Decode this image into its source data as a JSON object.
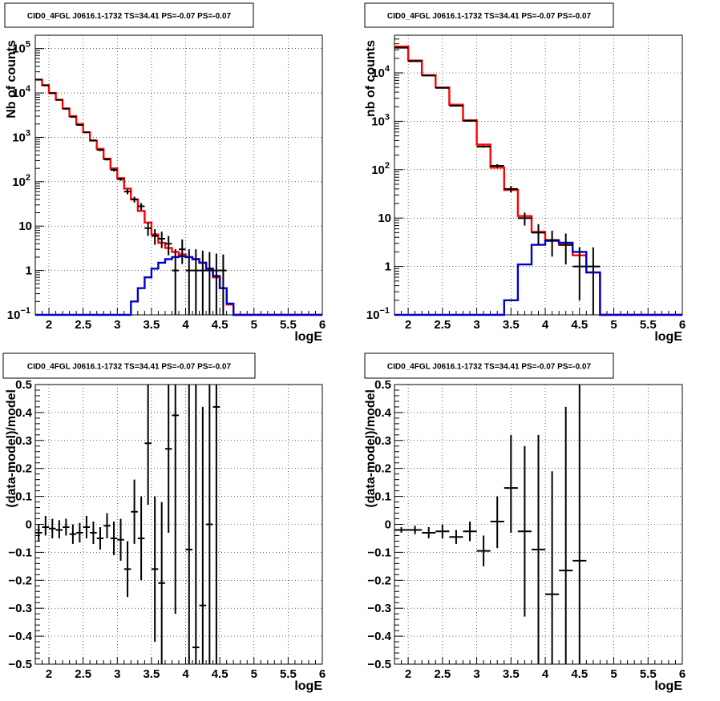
{
  "chart_data": [
    {
      "type": "line",
      "title": "CID0_4FGL J0616.1-1732 TS=34.41 PS=-0.07 PS=-0.07",
      "xlabel": "logE",
      "ylabel": "Nb of counts",
      "yscale": "log",
      "xlim": [
        1.8,
        6.0
      ],
      "ylim": [
        0.1,
        200000
      ],
      "grid": true,
      "x_ticks": [
        2,
        2.5,
        3,
        3.5,
        4,
        4.5,
        5,
        5.5,
        6
      ],
      "x_tick_labels": [
        "2",
        "2.5",
        "3",
        "3.5",
        "4",
        "4.5",
        "5",
        "5.5",
        "6"
      ],
      "y_ticks": [
        0.1,
        1,
        10,
        100,
        1000,
        10000,
        100000
      ],
      "y_tick_labels": [
        [
          "10",
          "−1"
        ],
        [
          "1",
          ""
        ],
        [
          "10",
          ""
        ],
        [
          "10",
          "2"
        ],
        [
          "10",
          "3"
        ],
        [
          "10",
          "4"
        ],
        [
          "10",
          "5"
        ]
      ],
      "series": [
        {
          "color": "#ff0000",
          "kind": "step",
          "edges": [
            1.8,
            1.9,
            2.0,
            2.1,
            2.2,
            2.3,
            2.4,
            2.5,
            2.6,
            2.7,
            2.8,
            2.9,
            3.0,
            3.1,
            3.2,
            3.3,
            3.4,
            3.5,
            3.6,
            3.7,
            3.8,
            3.9,
            4.0,
            4.1,
            4.2,
            4.3,
            4.4,
            4.5,
            4.6,
            4.7,
            4.8,
            6.0
          ],
          "values": [
            20000,
            15000,
            10000,
            7000,
            4500,
            3000,
            2000,
            1300,
            850,
            550,
            330,
            200,
            120,
            70,
            40,
            22,
            12,
            6.5,
            4.2,
            3.2,
            2.6,
            2.3,
            2.0,
            1.8,
            1.5,
            1.1,
            0.7,
            0.4,
            0.17,
            0.1,
            0.1
          ]
        },
        {
          "color": "#0000cc",
          "kind": "step",
          "edges": [
            1.8,
            3.2,
            3.3,
            3.4,
            3.5,
            3.6,
            3.7,
            3.8,
            3.9,
            4.0,
            4.1,
            4.2,
            4.3,
            4.4,
            4.5,
            4.6,
            4.7,
            6.0
          ],
          "values": [
            0.1,
            0.2,
            0.4,
            0.7,
            1.1,
            1.5,
            1.8,
            2.0,
            2.1,
            2.0,
            1.8,
            1.5,
            1.1,
            0.75,
            0.4,
            0.18,
            0.1
          ]
        }
      ],
      "points": [
        {
          "x": 1.85,
          "y": 20000,
          "xerr": 0.05,
          "ylo": 19500,
          "yhi": 20500
        },
        {
          "x": 1.95,
          "y": 14800,
          "xerr": 0.05,
          "ylo": 14400,
          "yhi": 15200
        },
        {
          "x": 2.05,
          "y": 9900,
          "xerr": 0.05,
          "ylo": 9600,
          "yhi": 10200
        },
        {
          "x": 2.15,
          "y": 7000,
          "xerr": 0.05,
          "ylo": 6800,
          "yhi": 7200
        },
        {
          "x": 2.25,
          "y": 4400,
          "xerr": 0.05,
          "ylo": 4250,
          "yhi": 4550
        },
        {
          "x": 2.35,
          "y": 2900,
          "xerr": 0.05,
          "ylo": 2800,
          "yhi": 3000
        },
        {
          "x": 2.45,
          "y": 1900,
          "xerr": 0.05,
          "ylo": 1820,
          "yhi": 1980
        },
        {
          "x": 2.55,
          "y": 1300,
          "xerr": 0.05,
          "ylo": 1240,
          "yhi": 1360
        },
        {
          "x": 2.65,
          "y": 850,
          "xerr": 0.05,
          "ylo": 810,
          "yhi": 890
        },
        {
          "x": 2.75,
          "y": 520,
          "xerr": 0.05,
          "ylo": 490,
          "yhi": 550
        },
        {
          "x": 2.85,
          "y": 320,
          "xerr": 0.05,
          "ylo": 300,
          "yhi": 340
        },
        {
          "x": 2.95,
          "y": 185,
          "xerr": 0.05,
          "ylo": 170,
          "yhi": 200
        },
        {
          "x": 3.05,
          "y": 115,
          "xerr": 0.05,
          "ylo": 105,
          "yhi": 125
        },
        {
          "x": 3.15,
          "y": 60,
          "xerr": 0.05,
          "ylo": 52,
          "yhi": 68
        },
        {
          "x": 3.25,
          "y": 40,
          "xerr": 0.05,
          "ylo": 34,
          "yhi": 46
        },
        {
          "x": 3.35,
          "y": 28,
          "xerr": 0.05,
          "ylo": 23,
          "yhi": 33
        },
        {
          "x": 3.45,
          "y": 9,
          "xerr": 0.05,
          "ylo": 6,
          "yhi": 12
        },
        {
          "x": 3.55,
          "y": 6,
          "xerr": 0.05,
          "ylo": 3.8,
          "yhi": 8.5
        },
        {
          "x": 3.65,
          "y": 5.2,
          "xerr": 0.05,
          "ylo": 3.2,
          "yhi": 7.5
        },
        {
          "x": 3.75,
          "y": 4,
          "xerr": 0.05,
          "ylo": 2.2,
          "yhi": 6
        },
        {
          "x": 3.85,
          "y": 1,
          "xerr": 0.05,
          "ylo": 0.1,
          "yhi": 3
        },
        {
          "x": 3.95,
          "y": 3,
          "xerr": 0.05,
          "ylo": 1.4,
          "yhi": 5
        },
        {
          "x": 4.05,
          "y": 1,
          "xerr": 0.05,
          "ylo": 0.1,
          "yhi": 3
        },
        {
          "x": 4.15,
          "y": 1,
          "xerr": 0.05,
          "ylo": 0.1,
          "yhi": 3
        },
        {
          "x": 4.25,
          "y": 1,
          "xerr": 0.05,
          "ylo": 0.1,
          "yhi": 2.8
        },
        {
          "x": 4.35,
          "y": 1,
          "xerr": 0.05,
          "ylo": 0.1,
          "yhi": 2.6
        },
        {
          "x": 4.45,
          "y": 1,
          "xerr": 0.05,
          "ylo": 0.1,
          "yhi": 2.4
        },
        {
          "x": 4.55,
          "y": 1,
          "xerr": 0.05,
          "ylo": 0.1,
          "yhi": 2.3
        }
      ]
    },
    {
      "type": "line",
      "title": "CID0_4FGL J0616.1-1732 TS=34.41 PS=-0.07 PS=-0.07",
      "xlabel": "logE",
      "ylabel": "nb of counts",
      "yscale": "log",
      "xlim": [
        1.8,
        6.0
      ],
      "ylim": [
        0.1,
        60000
      ],
      "grid": true,
      "x_ticks": [
        2,
        2.5,
        3,
        3.5,
        4,
        4.5,
        5,
        5.5,
        6
      ],
      "x_tick_labels": [
        "2",
        "2.5",
        "3",
        "3.5",
        "4",
        "4.5",
        "5",
        "5.5",
        "6"
      ],
      "y_ticks": [
        0.1,
        1,
        10,
        100,
        1000,
        10000
      ],
      "y_tick_labels": [
        [
          "10",
          "−1"
        ],
        [
          "1",
          ""
        ],
        [
          "10",
          ""
        ],
        [
          "10",
          "2"
        ],
        [
          "10",
          "3"
        ],
        [
          "10",
          "4"
        ]
      ],
      "series": [
        {
          "color": "#ff0000",
          "kind": "step",
          "edges": [
            1.8,
            2.0,
            2.2,
            2.4,
            2.6,
            2.8,
            3.0,
            3.2,
            3.4,
            3.6,
            3.8,
            4.0,
            4.2,
            4.4,
            4.6,
            4.8,
            6.0
          ],
          "values": [
            35000,
            18000,
            9000,
            5000,
            2200,
            1050,
            330,
            110,
            38,
            11,
            5.2,
            3.5,
            2.8,
            1.7,
            0.75,
            0.1
          ]
        },
        {
          "color": "#0000cc",
          "kind": "step",
          "edges": [
            1.8,
            3.2,
            3.4,
            3.6,
            3.8,
            4.0,
            4.2,
            4.4,
            4.6,
            4.8,
            6.0
          ],
          "values": [
            0.1,
            0.1,
            0.2,
            1.1,
            2.8,
            3.4,
            3.1,
            2.0,
            0.75,
            0.1
          ]
        }
      ],
      "points": [
        {
          "x": 1.9,
          "y": 33000,
          "xerr": 0.1,
          "ylo": 32500,
          "yhi": 33500
        },
        {
          "x": 2.1,
          "y": 17500,
          "xerr": 0.1,
          "ylo": 17200,
          "yhi": 17800
        },
        {
          "x": 2.3,
          "y": 8800,
          "xerr": 0.1,
          "ylo": 8600,
          "yhi": 9000
        },
        {
          "x": 2.5,
          "y": 4900,
          "xerr": 0.1,
          "ylo": 4750,
          "yhi": 5050
        },
        {
          "x": 2.7,
          "y": 2100,
          "xerr": 0.1,
          "ylo": 2030,
          "yhi": 2170
        },
        {
          "x": 2.9,
          "y": 1020,
          "xerr": 0.1,
          "ylo": 980,
          "yhi": 1060
        },
        {
          "x": 3.1,
          "y": 300,
          "xerr": 0.1,
          "ylo": 283,
          "yhi": 317
        },
        {
          "x": 3.3,
          "y": 120,
          "xerr": 0.1,
          "ylo": 110,
          "yhi": 130
        },
        {
          "x": 3.5,
          "y": 40,
          "xerr": 0.1,
          "ylo": 34,
          "yhi": 46
        },
        {
          "x": 3.7,
          "y": 10,
          "xerr": 0.1,
          "ylo": 7,
          "yhi": 13
        },
        {
          "x": 3.9,
          "y": 5,
          "xerr": 0.1,
          "ylo": 2.8,
          "yhi": 7.5
        },
        {
          "x": 4.1,
          "y": 3.5,
          "xerr": 0.1,
          "ylo": 1.6,
          "yhi": 5.5
        },
        {
          "x": 4.3,
          "y": 2.8,
          "xerr": 0.1,
          "ylo": 1.1,
          "yhi": 4.8
        },
        {
          "x": 4.5,
          "y": 1.0,
          "xerr": 0.1,
          "ylo": 0.2,
          "yhi": 2.5
        },
        {
          "x": 4.7,
          "y": 1.0,
          "xerr": 0.1,
          "ylo": 0.1,
          "yhi": 2.5
        }
      ]
    },
    {
      "type": "scatter",
      "title": "CID0_4FGL J0616.1-1732 TS=34.41 PS=-0.07 PS=-0.07",
      "xlabel": "logE",
      "ylabel": "(data-model)/model",
      "yscale": "linear",
      "xlim": [
        1.8,
        6.0
      ],
      "ylim": [
        -0.5,
        0.5
      ],
      "grid": true,
      "x_ticks": [
        2,
        2.5,
        3,
        3.5,
        4,
        4.5,
        5,
        5.5,
        6
      ],
      "x_tick_labels": [
        "2",
        "2.5",
        "3",
        "3.5",
        "4",
        "4.5",
        "5",
        "5.5",
        "6"
      ],
      "y_ticks": [
        -0.5,
        -0.4,
        -0.3,
        -0.2,
        -0.1,
        0,
        0.1,
        0.2,
        0.3,
        0.4,
        0.5
      ],
      "y_tick_labels": [
        [
          "−0.5",
          ""
        ],
        [
          "−0.4",
          ""
        ],
        [
          "−0.3",
          ""
        ],
        [
          "−0.2",
          ""
        ],
        [
          "−0.1",
          ""
        ],
        [
          "0",
          ""
        ],
        [
          "0.1",
          ""
        ],
        [
          "0.2",
          ""
        ],
        [
          "0.3",
          ""
        ],
        [
          "0.4",
          ""
        ],
        [
          "0.5",
          ""
        ]
      ],
      "series": [],
      "points": [
        {
          "x": 1.85,
          "y": -0.03,
          "xerr": 0.05,
          "ylo": -0.06,
          "yhi": 0.0
        },
        {
          "x": 1.95,
          "y": -0.01,
          "xerr": 0.05,
          "ylo": -0.04,
          "yhi": 0.03
        },
        {
          "x": 2.05,
          "y": -0.015,
          "xerr": 0.05,
          "ylo": -0.05,
          "yhi": 0.02
        },
        {
          "x": 2.15,
          "y": -0.02,
          "xerr": 0.05,
          "ylo": -0.05,
          "yhi": 0.015
        },
        {
          "x": 2.25,
          "y": -0.01,
          "xerr": 0.05,
          "ylo": -0.04,
          "yhi": 0.02
        },
        {
          "x": 2.35,
          "y": -0.035,
          "xerr": 0.05,
          "ylo": -0.07,
          "yhi": 0.0
        },
        {
          "x": 2.45,
          "y": -0.03,
          "xerr": 0.05,
          "ylo": -0.065,
          "yhi": 0.005
        },
        {
          "x": 2.55,
          "y": -0.01,
          "xerr": 0.05,
          "ylo": -0.05,
          "yhi": 0.03
        },
        {
          "x": 2.65,
          "y": -0.03,
          "xerr": 0.05,
          "ylo": -0.07,
          "yhi": 0.01
        },
        {
          "x": 2.75,
          "y": -0.05,
          "xerr": 0.05,
          "ylo": -0.09,
          "yhi": -0.01
        },
        {
          "x": 2.85,
          "y": -0.005,
          "xerr": 0.05,
          "ylo": -0.05,
          "yhi": 0.04
        },
        {
          "x": 2.95,
          "y": -0.05,
          "xerr": 0.05,
          "ylo": -0.11,
          "yhi": 0.01
        },
        {
          "x": 3.05,
          "y": -0.055,
          "xerr": 0.05,
          "ylo": -0.13,
          "yhi": 0.02
        },
        {
          "x": 3.15,
          "y": -0.16,
          "xerr": 0.05,
          "ylo": -0.26,
          "yhi": -0.06
        },
        {
          "x": 3.25,
          "y": 0.045,
          "xerr": 0.05,
          "ylo": -0.07,
          "yhi": 0.16
        },
        {
          "x": 3.35,
          "y": -0.05,
          "xerr": 0.05,
          "ylo": -0.2,
          "yhi": 0.1
        },
        {
          "x": 3.45,
          "y": 0.29,
          "xerr": 0.05,
          "ylo": 0.07,
          "yhi": 0.5
        },
        {
          "x": 3.55,
          "y": -0.16,
          "xerr": 0.05,
          "ylo": -0.42,
          "yhi": 0.1
        },
        {
          "x": 3.65,
          "y": -0.21,
          "xerr": 0.05,
          "ylo": -0.5,
          "yhi": 0.08
        },
        {
          "x": 3.75,
          "y": 0.27,
          "xerr": 0.05,
          "ylo": -0.03,
          "yhi": 0.5
        },
        {
          "x": 3.85,
          "y": 0.39,
          "xerr": 0.05,
          "ylo": -0.32,
          "yhi": 0.5
        },
        {
          "x": 4.05,
          "y": -0.09,
          "xerr": 0.05,
          "ylo": -0.5,
          "yhi": 0.5
        },
        {
          "x": 4.15,
          "y": -0.44,
          "xerr": 0.05,
          "ylo": -0.5,
          "yhi": 0.5
        },
        {
          "x": 4.25,
          "y": -0.29,
          "xerr": 0.05,
          "ylo": -0.5,
          "yhi": 0.42
        },
        {
          "x": 4.35,
          "y": 0.0,
          "xerr": 0.05,
          "ylo": -0.5,
          "yhi": 0.5
        },
        {
          "x": 4.45,
          "y": 0.42,
          "xerr": 0.05,
          "ylo": -0.5,
          "yhi": 0.5
        }
      ]
    },
    {
      "type": "scatter",
      "title": "CID0_4FGL J0616.1-1732 TS=34.41 PS=-0.07 PS=-0.07",
      "xlabel": "logE",
      "ylabel": "(data-model)/model",
      "yscale": "linear",
      "xlim": [
        1.8,
        6.0
      ],
      "ylim": [
        -0.5,
        0.5
      ],
      "grid": true,
      "x_ticks": [
        2,
        2.5,
        3,
        3.5,
        4,
        4.5,
        5,
        5.5,
        6
      ],
      "x_tick_labels": [
        "2",
        "2.5",
        "3",
        "3.5",
        "4",
        "4.5",
        "5",
        "5.5",
        "6"
      ],
      "y_ticks": [
        -0.5,
        -0.4,
        -0.3,
        -0.2,
        -0.1,
        0,
        0.1,
        0.2,
        0.3,
        0.4,
        0.5
      ],
      "y_tick_labels": [
        [
          "−0.5",
          ""
        ],
        [
          "−0.4",
          ""
        ],
        [
          "−0.3",
          ""
        ],
        [
          "−0.2",
          ""
        ],
        [
          "−0.1",
          ""
        ],
        [
          "0",
          ""
        ],
        [
          "0.1",
          ""
        ],
        [
          "0.2",
          ""
        ],
        [
          "0.3",
          ""
        ],
        [
          "0.4",
          ""
        ],
        [
          "0.5",
          ""
        ]
      ],
      "series": [],
      "points": [
        {
          "x": 1.9,
          "y": -0.02,
          "xerr": 0.1,
          "ylo": -0.03,
          "yhi": -0.01
        },
        {
          "x": 2.1,
          "y": -0.02,
          "xerr": 0.1,
          "ylo": -0.035,
          "yhi": -0.005
        },
        {
          "x": 2.3,
          "y": -0.03,
          "xerr": 0.1,
          "ylo": -0.05,
          "yhi": -0.01
        },
        {
          "x": 2.5,
          "y": -0.025,
          "xerr": 0.1,
          "ylo": -0.05,
          "yhi": 0.0
        },
        {
          "x": 2.7,
          "y": -0.045,
          "xerr": 0.1,
          "ylo": -0.07,
          "yhi": -0.02
        },
        {
          "x": 2.9,
          "y": -0.025,
          "xerr": 0.1,
          "ylo": -0.06,
          "yhi": 0.01
        },
        {
          "x": 3.1,
          "y": -0.095,
          "xerr": 0.1,
          "ylo": -0.15,
          "yhi": -0.04
        },
        {
          "x": 3.3,
          "y": 0.01,
          "xerr": 0.1,
          "ylo": -0.085,
          "yhi": 0.1
        },
        {
          "x": 3.5,
          "y": 0.13,
          "xerr": 0.1,
          "ylo": -0.03,
          "yhi": 0.32
        },
        {
          "x": 3.7,
          "y": -0.025,
          "xerr": 0.1,
          "ylo": -0.33,
          "yhi": 0.28
        },
        {
          "x": 3.9,
          "y": -0.09,
          "xerr": 0.1,
          "ylo": -0.5,
          "yhi": 0.32
        },
        {
          "x": 4.1,
          "y": -0.25,
          "xerr": 0.1,
          "ylo": -0.5,
          "yhi": 0.19
        },
        {
          "x": 4.3,
          "y": -0.165,
          "xerr": 0.1,
          "ylo": -0.5,
          "yhi": 0.42
        },
        {
          "x": 4.5,
          "y": -0.13,
          "xerr": 0.1,
          "ylo": -0.5,
          "yhi": 0.5
        }
      ]
    }
  ]
}
